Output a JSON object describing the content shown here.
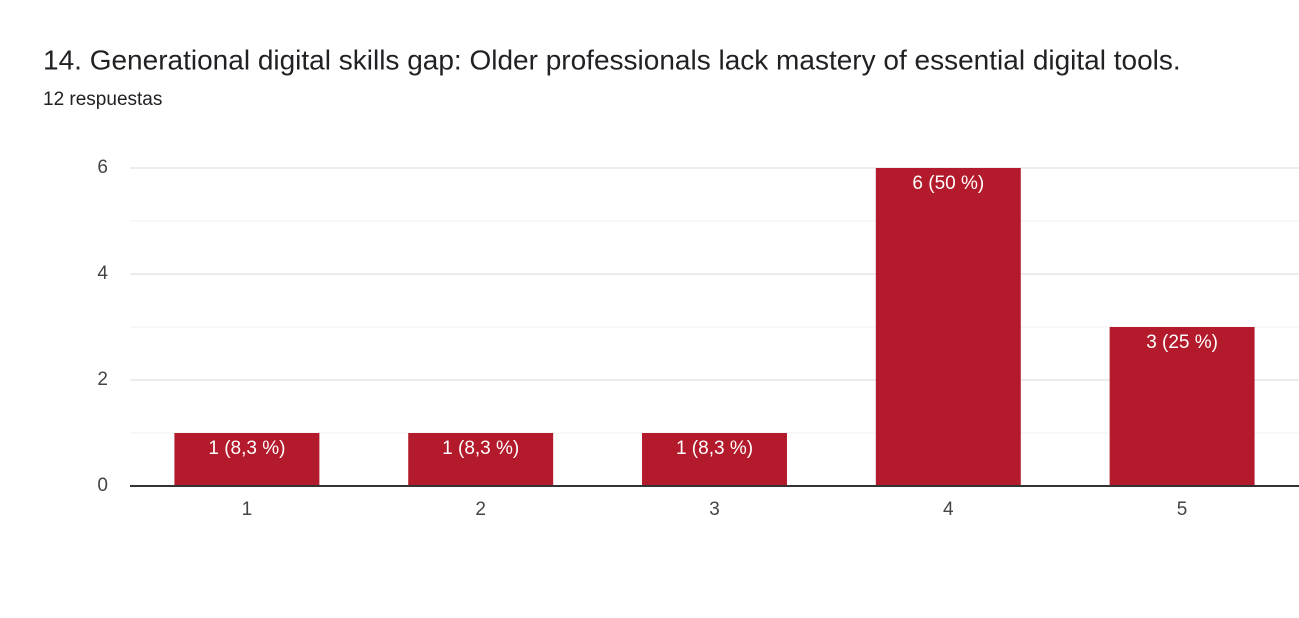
{
  "chart_data": {
    "type": "bar",
    "title": "14.  Generational digital skills gap: Older professionals lack mastery of essential digital tools.",
    "subtitle": "12 respuestas",
    "categories": [
      "1",
      "2",
      "3",
      "4",
      "5"
    ],
    "values": [
      1,
      1,
      1,
      6,
      3
    ],
    "value_labels": [
      "1 (8,3 %)",
      "1 (8,3 %)",
      "1 (8,3 %)",
      "6 (50 %)",
      "3 (25 %)"
    ],
    "color": "#b31a2b",
    "ylim": [
      0,
      6
    ],
    "yticks": [
      0,
      2,
      4,
      6
    ],
    "minor_yticks": [
      1,
      3,
      5
    ],
    "grid": true
  }
}
